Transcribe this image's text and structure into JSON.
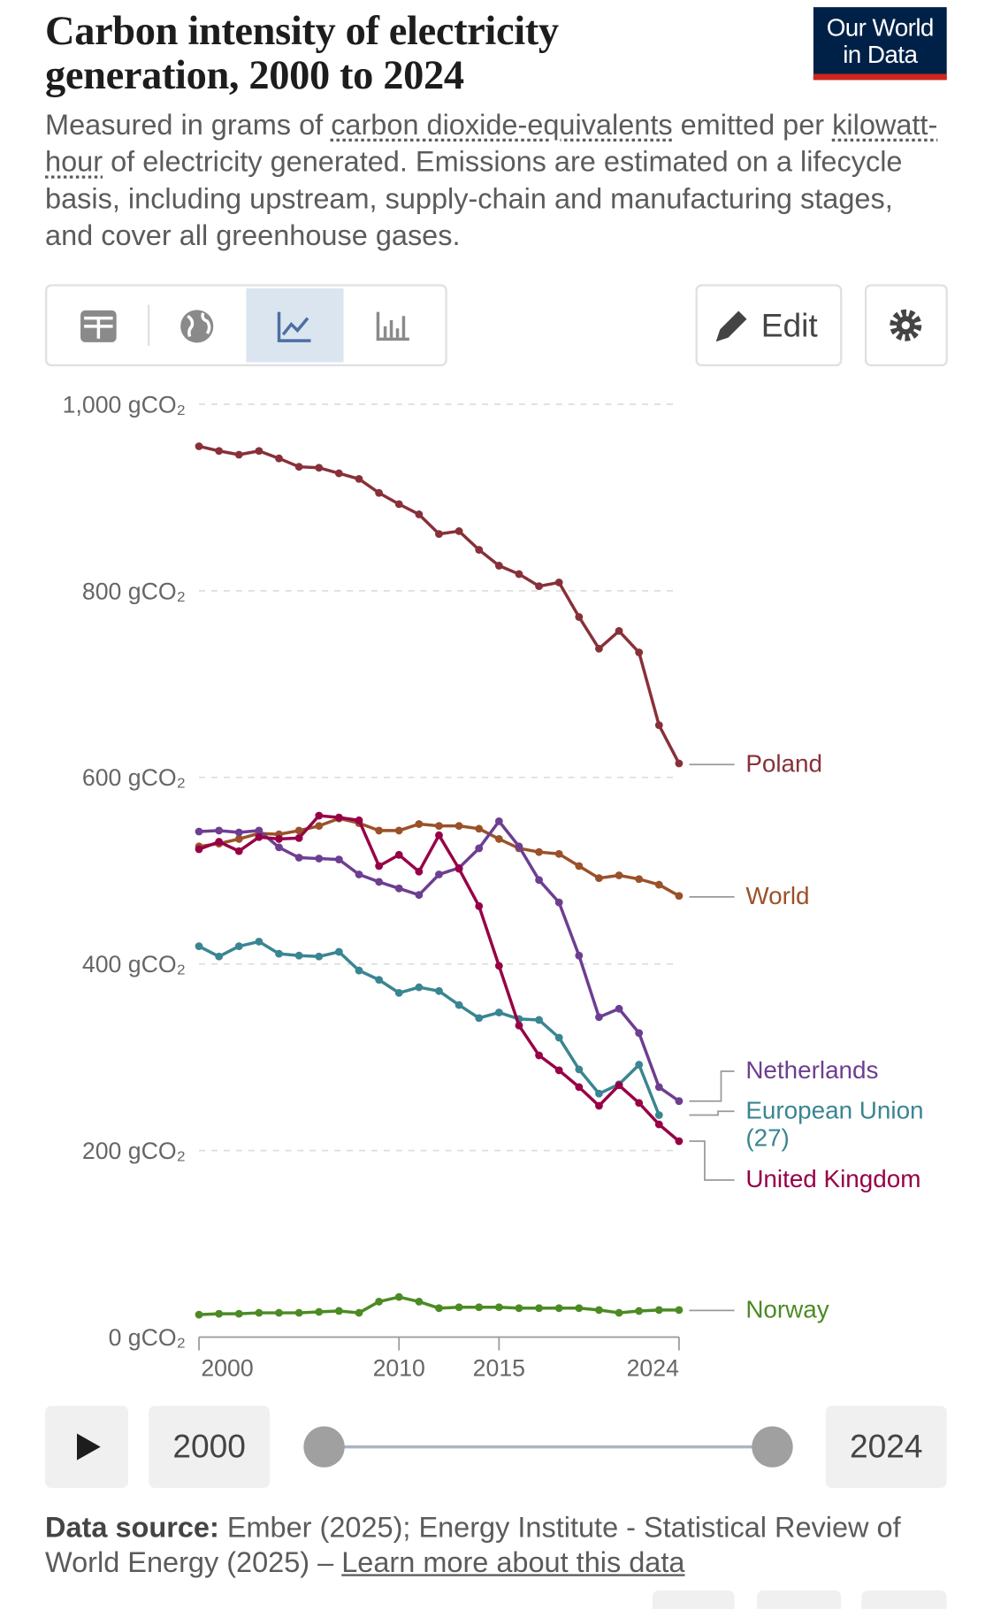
{
  "logo": [
    "Our World",
    "in Data"
  ],
  "toolbar": {
    "edit": "Edit"
  },
  "chart_data": {
    "type": "line",
    "title": "Carbon intensity of electricity generation, 2000 to 2024",
    "subtitle": [
      "Measured in grams of ",
      "carbon dioxide-equivalents",
      " emitted per ",
      "kilowatt-hour",
      " of electricity generated. Emissions are estimated on a lifecycle basis, including upstream, supply-chain and manufacturing stages, and cover all greenhouse gases."
    ],
    "x": [
      2000,
      2001,
      2002,
      2003,
      2004,
      2005,
      2006,
      2007,
      2008,
      2009,
      2010,
      2011,
      2012,
      2013,
      2014,
      2015,
      2016,
      2017,
      2018,
      2019,
      2020,
      2021,
      2022,
      2023,
      2024
    ],
    "xlim": [
      2000,
      2024
    ],
    "xticks": [
      2000,
      2010,
      2015,
      2024
    ],
    "ylim": [
      0,
      1000
    ],
    "yticks": [
      {
        "value": 0,
        "label": "0 gCO₂"
      },
      {
        "value": 200,
        "label": "200 gCO₂"
      },
      {
        "value": 400,
        "label": "400 gCO₂"
      },
      {
        "value": 600,
        "label": "600 gCO₂"
      },
      {
        "value": 800,
        "label": "800 gCO₂"
      },
      {
        "value": 1000,
        "label": "1,000 gCO₂"
      }
    ],
    "grid": true,
    "series": [
      {
        "name": "Poland",
        "color": "#883039",
        "values": [
          955,
          950,
          946,
          950,
          942,
          933,
          932,
          926,
          920,
          905,
          893,
          882,
          861,
          864,
          844,
          827,
          818,
          805,
          809,
          772,
          738,
          757,
          734,
          656,
          615
        ]
      },
      {
        "name": "World",
        "color": "#9a5129",
        "values": [
          526,
          529,
          534,
          540,
          539,
          543,
          548,
          556,
          551,
          543,
          543,
          550,
          548,
          548,
          545,
          534,
          524,
          520,
          518,
          505,
          492,
          495,
          491,
          485,
          473
        ]
      },
      {
        "name": "Netherlands",
        "color": "#6d3e91",
        "values": [
          542,
          543,
          541,
          543,
          525,
          514,
          513,
          512,
          496,
          488,
          481,
          474,
          496,
          503,
          524,
          553,
          526,
          490,
          466,
          409,
          343,
          352,
          326,
          268,
          253
        ]
      },
      {
        "name": "European Union (27)",
        "color": "#3a8592",
        "values": [
          419,
          408,
          419,
          424,
          411,
          409,
          408,
          413,
          393,
          383,
          369,
          375,
          371,
          356,
          342,
          348,
          341,
          340,
          321,
          287,
          261,
          271,
          292,
          238,
          null
        ]
      },
      {
        "name": "United Kingdom",
        "color": "#970046",
        "values": [
          523,
          531,
          521,
          536,
          534,
          535,
          559,
          557,
          554,
          505,
          517,
          499,
          538,
          502,
          462,
          398,
          334,
          302,
          286,
          268,
          248,
          270,
          251,
          228,
          210
        ]
      },
      {
        "name": "Norway",
        "color": "#4c8b24",
        "values": [
          24,
          25,
          25,
          26,
          26,
          26,
          27,
          28,
          26,
          38,
          43,
          38,
          31,
          32,
          32,
          32,
          31,
          31,
          31,
          31,
          29,
          26,
          28,
          29,
          29
        ]
      }
    ]
  },
  "timeline": {
    "start": 2000,
    "end": 2024
  },
  "source": {
    "label": "Data source:",
    "text": " Ember (2025); Energy Institute - Statistical Review of World Energy (2025) – ",
    "link": "Learn more about this data"
  }
}
